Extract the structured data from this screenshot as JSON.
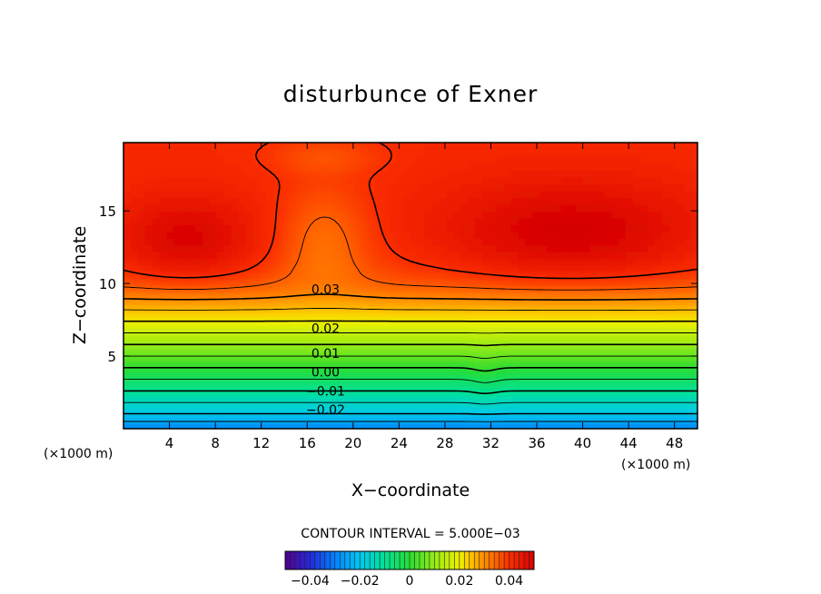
{
  "chart_data": {
    "type": "contour",
    "title": "disturbunce of Exner",
    "xlabel": "X−coordinate",
    "ylabel": "Z−coordinate",
    "x_unit_left": "(×1000 m)",
    "x_unit_right": "(×1000 m)",
    "xlim": [
      0,
      50
    ],
    "ylim": [
      0,
      19.7
    ],
    "x_ticks": [
      4,
      8,
      12,
      16,
      20,
      24,
      28,
      32,
      36,
      40,
      44,
      48
    ],
    "x_tick_labels": [
      "4",
      "8",
      "12",
      "16",
      "20",
      "24",
      "28",
      "32",
      "36",
      "40",
      "44",
      "48"
    ],
    "y_ticks": [
      5,
      10,
      15
    ],
    "y_tick_labels": [
      "5",
      "10",
      "15"
    ],
    "contour_interval_text": "CONTOUR INTERVAL = 5.000E−03",
    "contour_interval": 0.005,
    "line_labels": [
      {
        "text": "0.03",
        "x": 17.6,
        "z": 9.6
      },
      {
        "text": "0.02",
        "x": 17.6,
        "z": 6.9
      },
      {
        "text": "0.01",
        "x": 17.6,
        "z": 5.2
      },
      {
        "text": "0.00",
        "x": 17.6,
        "z": 3.9
      },
      {
        "text": "−0.01",
        "x": 17.6,
        "z": 2.6
      },
      {
        "text": "−0.02",
        "x": 17.6,
        "z": 1.3
      }
    ],
    "colorbar": {
      "min": -0.05,
      "max": 0.05,
      "tick_values": [
        -0.04,
        -0.02,
        0,
        0.02,
        0.04
      ],
      "tick_labels": [
        "−0.04",
        "−0.02",
        "0",
        "0.02",
        "0.04"
      ]
    }
  }
}
